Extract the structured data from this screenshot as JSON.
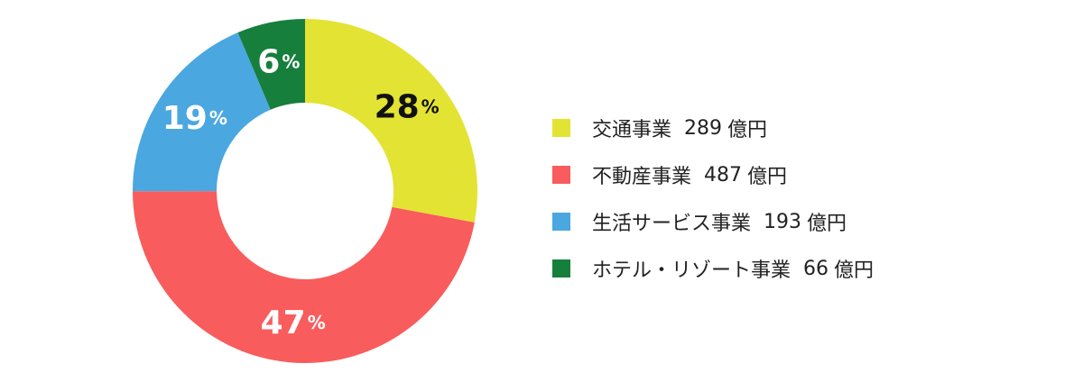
{
  "chart_data": {
    "type": "pie",
    "categories": [
      "交通事業",
      "不動産事業",
      "生活サービス事業",
      "ホテル・リゾート事業"
    ],
    "values": [
      289,
      487,
      193,
      66
    ],
    "unit": "億円",
    "percent_values": [
      28,
      47,
      19,
      6
    ],
    "percent_labels": [
      "28",
      "47",
      "19",
      "6"
    ],
    "percent_unit": "%",
    "colors": [
      "#e3e333",
      "#f95c5c",
      "#4aa7e0",
      "#167f3c"
    ],
    "label_colors": [
      "#111111",
      "#ffffff",
      "#ffffff",
      "#ffffff"
    ],
    "legend_values": [
      "289",
      "487",
      "193",
      "66"
    ],
    "donut": true,
    "legend_position": "right"
  }
}
